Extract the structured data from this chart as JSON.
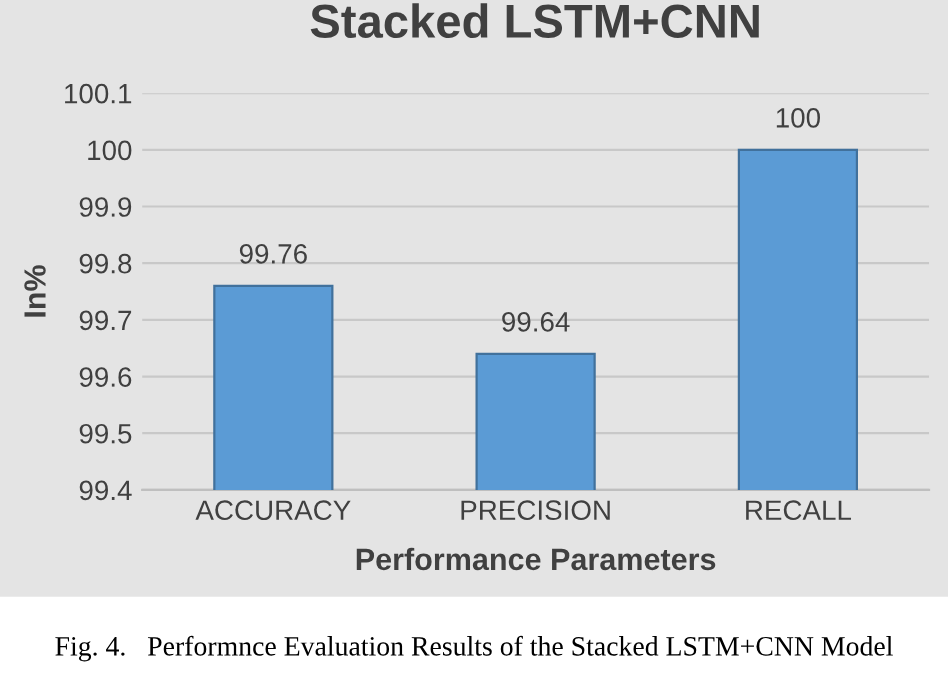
{
  "chart_data": {
    "type": "bar",
    "title": "Stacked LSTM+CNN",
    "categories": [
      "ACCURACY",
      "PRECISION",
      "RECALL"
    ],
    "values": [
      99.76,
      99.64,
      100
    ],
    "color": "#5b9bd5",
    "ylabel": "In%",
    "xlabel": "Performance Parameters",
    "ylim": [
      99.4,
      100.1
    ],
    "yticks": [
      99.4,
      99.5,
      99.6,
      99.7,
      99.8,
      99.9,
      100,
      100.1
    ],
    "grid": "y",
    "data_labels": true,
    "annotations": [
      "Fig. 4.   Performnce Evaluation Results of the Stacked LSTM+CNN Model"
    ]
  }
}
